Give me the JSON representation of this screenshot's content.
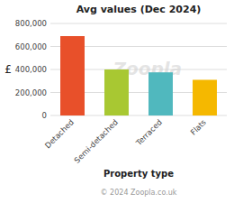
{
  "chart_data": {
    "type": "bar",
    "title": "Avg values (Dec 2024)",
    "categories": [
      "Detached",
      "Semi-detached",
      "Terraced",
      "Flats"
    ],
    "values": [
      690000,
      400000,
      375000,
      310000
    ],
    "colors": [
      "#E8502A",
      "#A8C832",
      "#50B8BE",
      "#F5B800"
    ],
    "ylabel": "£",
    "xlabel": "Property type",
    "ylim": [
      0,
      800000
    ],
    "yticks": [
      0,
      {
        "value": 200000,
        "label": "200,000"
      },
      {
        "value": 400000,
        "label": "400,000"
      },
      {
        "value": 600000,
        "label": "600,000"
      },
      {
        "value": 800000,
        "label": "800,000"
      }
    ],
    "grid": true,
    "annotations": [
      "Zoopla",
      "© 2024 Zoopla.co.uk"
    ]
  }
}
